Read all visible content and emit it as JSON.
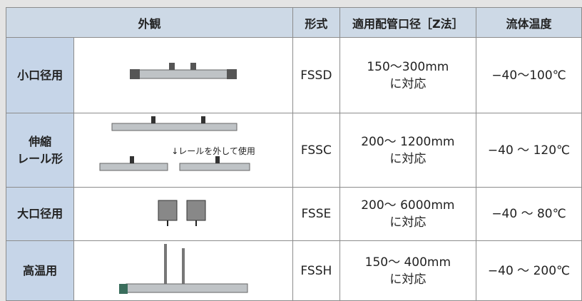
{
  "table": {
    "header": [
      "外観",
      "形式",
      "適用配管口径［Z法］",
      "流体温度"
    ],
    "rows": [
      {
        "label": [
          "小口径用"
        ],
        "model": "FSSD",
        "diameter": [
          "150〜300mm",
          "に対応"
        ],
        "temp": "−40〜100℃"
      },
      {
        "label": [
          "伸縮",
          "レール形"
        ],
        "model": "FSSC",
        "diameter": [
          "200〜 1200mm",
          "に対応"
        ],
        "temp": "−40 〜 120℃",
        "note": "↓レールを外して使用"
      },
      {
        "label": [
          "大口径用"
        ],
        "model": "FSSE",
        "diameter": [
          "200〜 6000mm",
          "に対応"
        ],
        "temp": "−40 〜 80℃"
      },
      {
        "label": [
          "高温用"
        ],
        "model": "FSSH",
        "diameter": [
          "150〜 400mm",
          "に対応"
        ],
        "temp": "−40 〜 200℃"
      }
    ]
  }
}
